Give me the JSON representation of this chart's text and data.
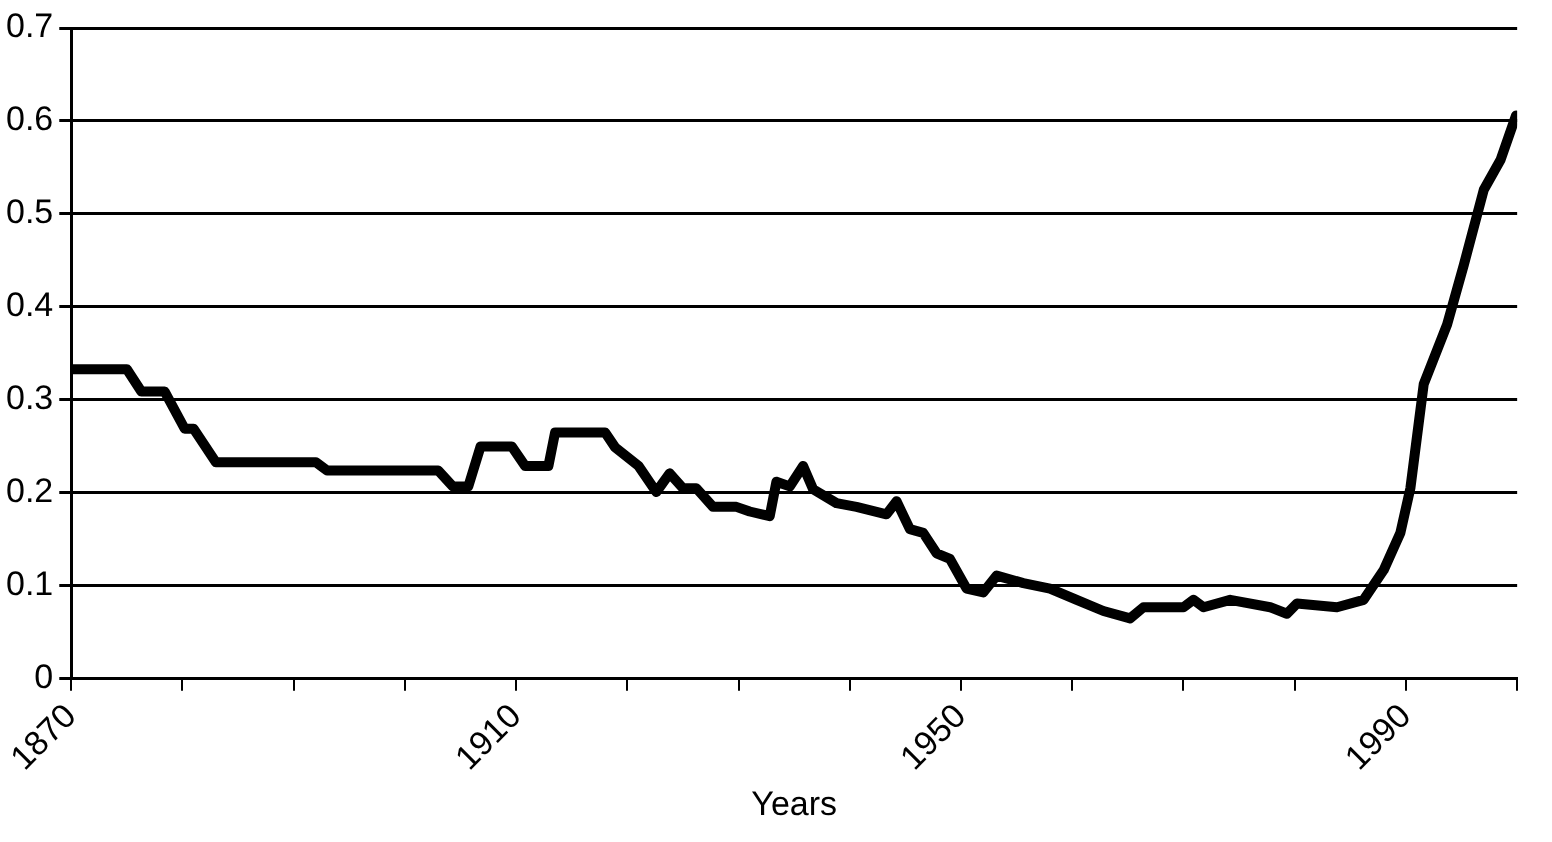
{
  "chart_data": {
    "type": "line",
    "xlabel": "Years",
    "x": [
      1870,
      1875,
      1876.3,
      1878.4,
      1880.2,
      1881,
      1883,
      1892,
      1893,
      1903,
      1904.3,
      1905.7,
      1906.8,
      1909.6,
      1910.8,
      1912.9,
      1913.5,
      1918,
      1918.9,
      1921,
      1922.6,
      1923.8,
      1925,
      1926.2,
      1927.7,
      1929.8,
      1931,
      1932.8,
      1933.4,
      1934.6,
      1935.8,
      1936.7,
      1938.8,
      1940.6,
      1943.3,
      1944.2,
      1945.4,
      1946.6,
      1947.8,
      1949,
      1950.5,
      1952,
      1953.2,
      1955.6,
      1958,
      1960.4,
      1962.8,
      1965.2,
      1966.4,
      1970,
      1970.9,
      1971.8,
      1974.2,
      1977.8,
      1979.3,
      1980.2,
      1983.8,
      1986.2,
      1988,
      1989.5,
      1990.4,
      1991.6,
      1993.7,
      1995.2,
      1997,
      1998.5,
      1999.9
    ],
    "series": [
      {
        "color": "#000000",
        "values": [
          0.333,
          0.333,
          0.309,
          0.309,
          0.269,
          0.269,
          0.233,
          0.233,
          0.224,
          0.224,
          0.207,
          0.207,
          0.25,
          0.25,
          0.229,
          0.229,
          0.265,
          0.265,
          0.249,
          0.229,
          0.201,
          0.221,
          0.205,
          0.205,
          0.185,
          0.185,
          0.18,
          0.175,
          0.212,
          0.207,
          0.229,
          0.204,
          0.189,
          0.185,
          0.177,
          0.191,
          0.161,
          0.157,
          0.135,
          0.129,
          0.097,
          0.093,
          0.111,
          0.103,
          0.097,
          0.085,
          0.073,
          0.065,
          0.077,
          0.077,
          0.085,
          0.077,
          0.085,
          0.077,
          0.07,
          0.081,
          0.077,
          0.085,
          0.117,
          0.157,
          0.205,
          0.317,
          0.381,
          0.445,
          0.526,
          0.558,
          0.606
        ]
      }
    ],
    "xlim": [
      1870,
      2000
    ],
    "xticks": [
      1870,
      {
        "value": 1880,
        "label": null
      },
      {
        "value": 1890,
        "label": null
      },
      {
        "value": 1900,
        "label": null
      },
      1910,
      {
        "value": 1920,
        "label": null
      },
      {
        "value": 1930,
        "label": null
      },
      {
        "value": 1940,
        "label": null
      },
      1950,
      {
        "value": 1960,
        "label": null
      },
      {
        "value": 1970,
        "label": null
      },
      {
        "value": 1980,
        "label": null
      },
      1990,
      {
        "value": 2000,
        "label": null
      }
    ],
    "ylim": [
      0,
      0.7
    ],
    "yticks": [
      0,
      0.1,
      0.2,
      0.3,
      0.4,
      0.5,
      0.6,
      0.7
    ],
    "grid": "y",
    "legend": false,
    "marker": "none",
    "line_style": "solid"
  }
}
